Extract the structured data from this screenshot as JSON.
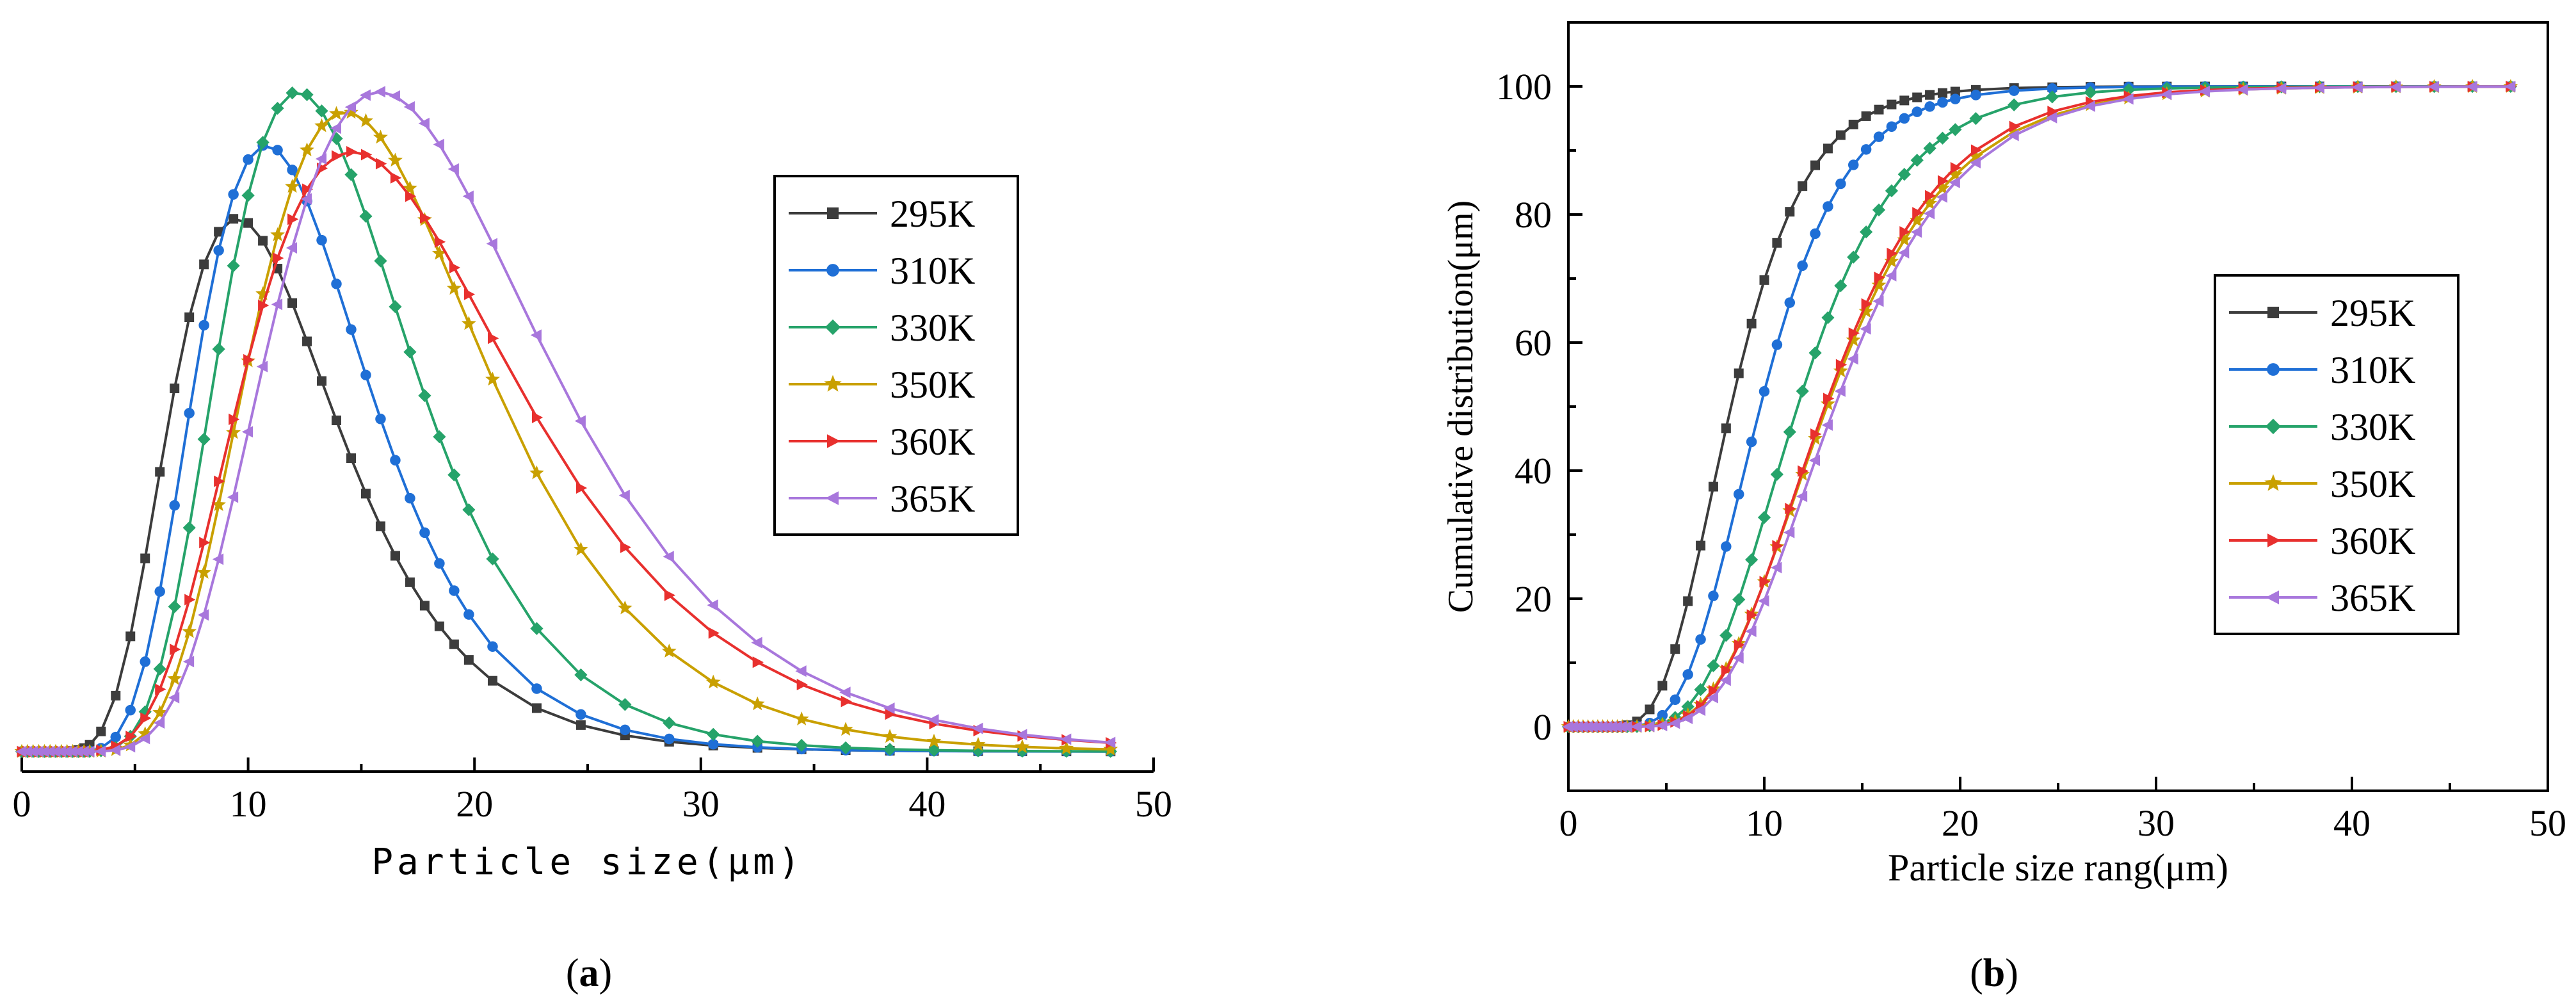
{
  "figure": {
    "caption_a_paren_open": "(",
    "caption_a_letter": "a",
    "caption_a_paren_close": ")",
    "caption_b_paren_open": "(",
    "caption_b_letter": "b",
    "caption_b_paren_close": ")"
  },
  "colors": {
    "295K": "#3c3c3c",
    "310K": "#1f6fd6",
    "330K": "#26a36a",
    "350K": "#c9a000",
    "360K": "#e8302e",
    "365K": "#a877dc"
  },
  "chart_data": [
    {
      "id": "a",
      "type": "line",
      "title": "",
      "xlabel": "Particle size(μm)",
      "ylabel": "",
      "xlim": [
        0,
        50
      ],
      "ylim": [
        -3,
        107
      ],
      "xticks": [
        "0",
        "10",
        "20",
        "30",
        "40",
        "50"
      ],
      "yticks": [],
      "legend": "right-middle",
      "series": [
        {
          "name": "295K",
          "marker": "square",
          "peak_x": 9.5,
          "peak_y": 80,
          "sigma": 0.39,
          "base": 0,
          "x_start": 2.1
        },
        {
          "name": "310K",
          "marker": "circle",
          "peak_x": 10.8,
          "peak_y": 91,
          "sigma": 0.35,
          "base": 0,
          "x_start": 2.4
        },
        {
          "name": "330K",
          "marker": "diamond",
          "peak_x": 12.2,
          "peak_y": 99,
          "sigma": 0.34,
          "base": 0,
          "x_start": 2.7
        },
        {
          "name": "350K",
          "marker": "star",
          "peak_x": 14.3,
          "peak_y": 96,
          "sigma": 0.36,
          "base": 0,
          "x_start": 2.9
        },
        {
          "name": "360K",
          "marker": "triangle-right",
          "peak_x": 14.6,
          "peak_y": 90,
          "sigma": 0.41,
          "base": 0,
          "x_start": 3.0
        },
        {
          "name": "365K",
          "marker": "triangle-left",
          "peak_x": 15.8,
          "peak_y": 99,
          "sigma": 0.38,
          "base": 0,
          "x_start": 3.1
        }
      ]
    },
    {
      "id": "b",
      "type": "line",
      "title": "",
      "xlabel": "Particle size rang(μm)",
      "ylabel": "Cumulative distribution(μm)",
      "xlim": [
        0,
        50
      ],
      "ylim": [
        -10,
        110
      ],
      "xticks": [
        "0",
        "10",
        "20",
        "30",
        "40",
        "50"
      ],
      "yticks": [
        "0",
        "20",
        "40",
        "60",
        "80",
        "100"
      ],
      "legend": "right-middle",
      "series": [
        {
          "name": "295K",
          "marker": "square",
          "median_x": 8.3,
          "sigma": 0.36,
          "x_start": 2.3
        },
        {
          "name": "310K",
          "marker": "circle",
          "median_x": 9.8,
          "sigma": 0.34,
          "x_start": 2.6
        },
        {
          "name": "330K",
          "marker": "diamond",
          "median_x": 11.7,
          "sigma": 0.35,
          "x_start": 2.9
        },
        {
          "name": "350K",
          "marker": "star",
          "median_x": 13.2,
          "sigma": 0.37,
          "x_start": 3.1
        },
        {
          "name": "360K",
          "marker": "triangle-right",
          "median_x": 13.1,
          "sigma": 0.36,
          "x_start": 3.1
        },
        {
          "name": "365K",
          "marker": "triangle-left",
          "median_x": 13.6,
          "sigma": 0.36,
          "x_start": 3.2
        }
      ]
    }
  ]
}
